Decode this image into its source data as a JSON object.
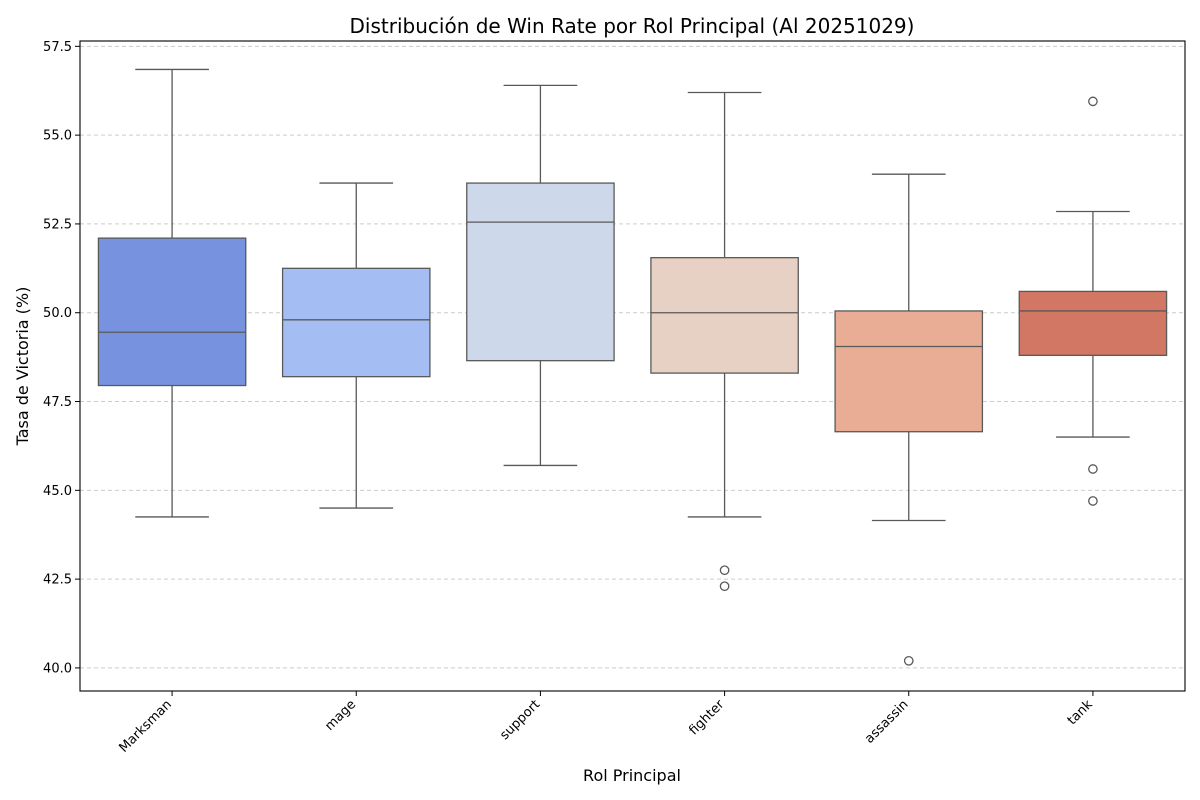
{
  "chart_data": {
    "type": "box",
    "title": "Distribución de Win Rate por Rol Principal (Al 20251029)",
    "xlabel": "Rol Principal",
    "ylabel": "Tasa de Victoria (%)",
    "ylim": [
      39.35,
      57.65
    ],
    "yticks": [
      "40.0",
      "42.5",
      "45.0",
      "47.5",
      "50.0",
      "52.5",
      "55.0",
      "57.5"
    ],
    "ytick_values": [
      40.0,
      42.5,
      45.0,
      47.5,
      50.0,
      52.5,
      55.0,
      57.5
    ],
    "grid": "y-dashed",
    "categories": [
      "Marksman",
      "mage",
      "support",
      "fighter",
      "assassin",
      "tank"
    ],
    "boxes": [
      {
        "category": "Marksman",
        "whisker_low": 44.25,
        "q1": 47.95,
        "median": 49.45,
        "q3": 52.1,
        "whisker_high": 56.85,
        "outliers": [],
        "color": "#7793e0"
      },
      {
        "category": "mage",
        "whisker_low": 44.5,
        "q1": 48.2,
        "median": 49.8,
        "q3": 51.25,
        "whisker_high": 53.65,
        "outliers": [],
        "color": "#a4bdf3"
      },
      {
        "category": "support",
        "whisker_low": 45.7,
        "q1": 48.65,
        "median": 52.55,
        "q3": 53.65,
        "whisker_high": 56.4,
        "outliers": [],
        "color": "#cdd8ea"
      },
      {
        "category": "fighter",
        "whisker_low": 44.25,
        "q1": 48.3,
        "median": 50.0,
        "q3": 51.55,
        "whisker_high": 56.2,
        "outliers": [
          42.75,
          42.3
        ],
        "color": "#e7d1c5"
      },
      {
        "category": "assassin",
        "whisker_low": 44.15,
        "q1": 46.65,
        "median": 49.05,
        "q3": 50.05,
        "whisker_high": 53.9,
        "outliers": [
          40.2
        ],
        "color": "#e9ad96"
      },
      {
        "category": "tank",
        "whisker_low": 46.5,
        "q1": 48.8,
        "median": 50.05,
        "q3": 50.6,
        "whisker_high": 52.85,
        "outliers": [
          55.95,
          45.6,
          44.7
        ],
        "color": "#d27764"
      }
    ]
  }
}
